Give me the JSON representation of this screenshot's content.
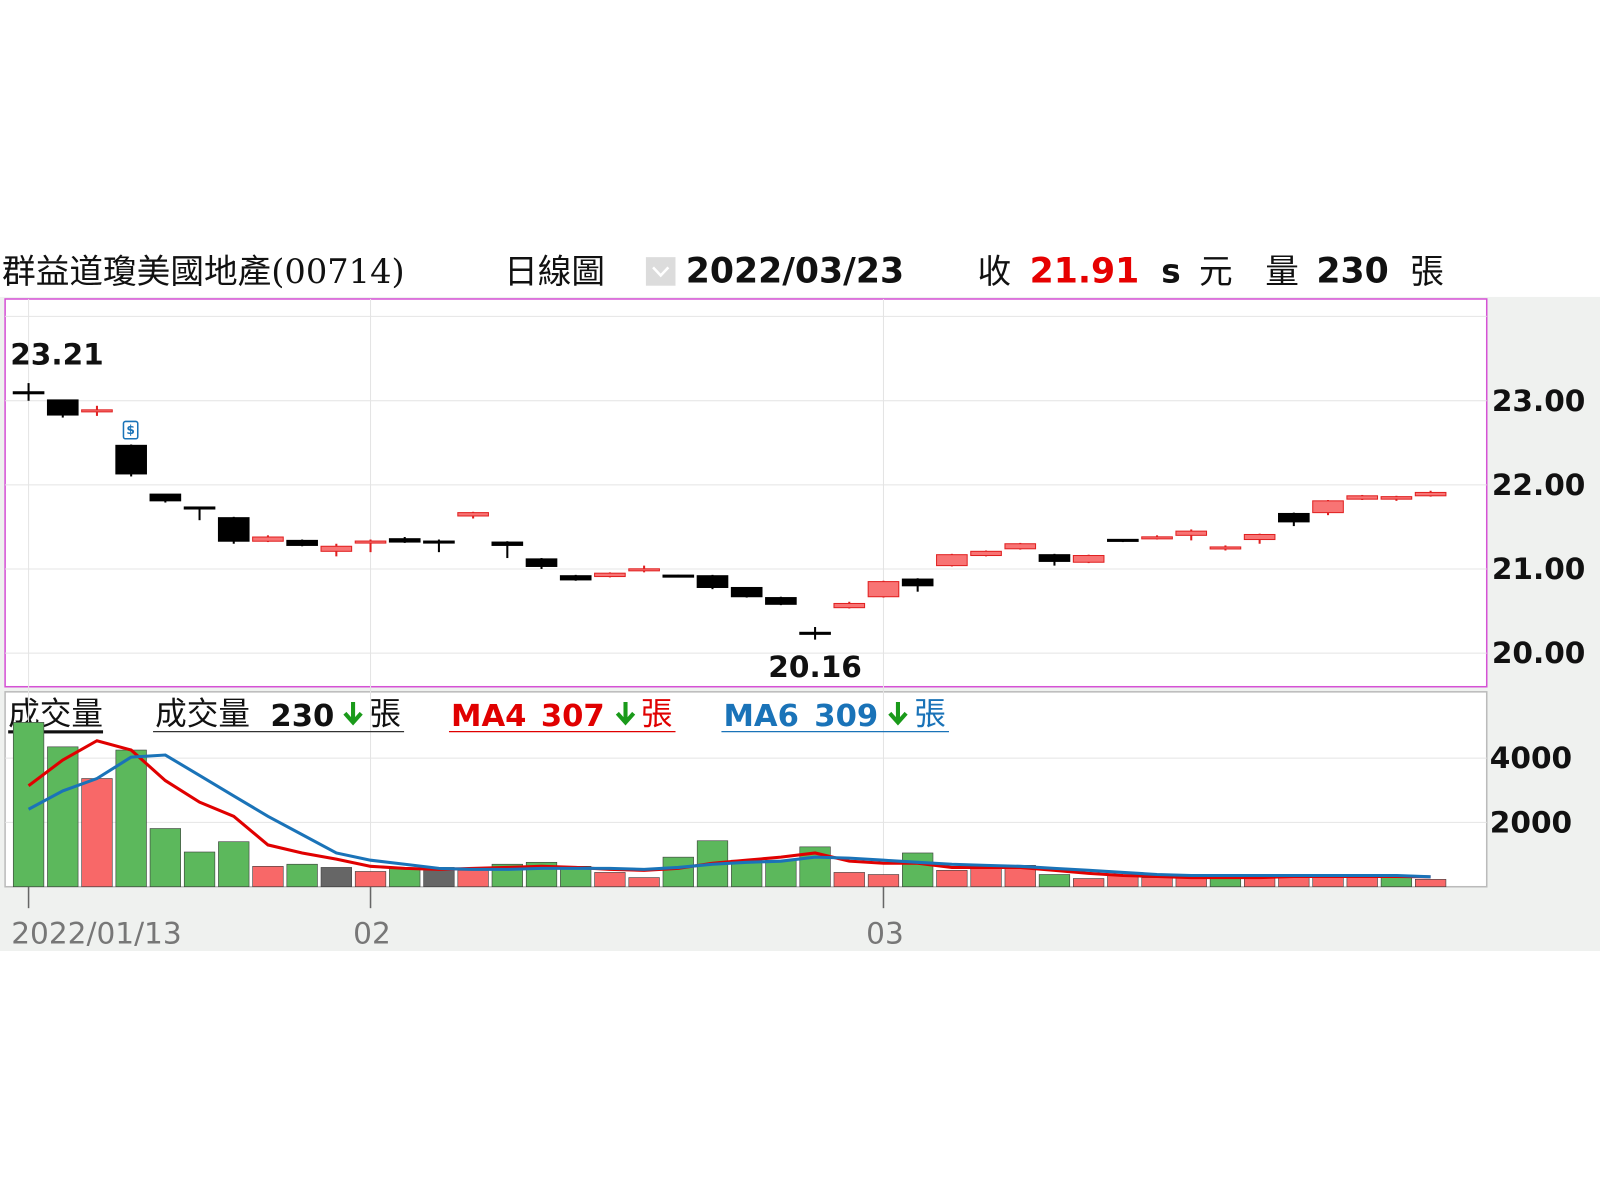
{
  "chart_data": {
    "type": "candlestick",
    "title": "群益道瓊美國地產(00714)",
    "period": "日線圖",
    "date": "2022/03/23",
    "close_label": "收",
    "close_flag": "s",
    "currency": "元",
    "volume_label": "量",
    "unit": "張",
    "dividend_marker": "$",
    "categories": [
      "2022/01/13",
      null,
      null,
      null,
      null,
      null,
      null,
      null,
      null,
      null,
      "02",
      null,
      null,
      null,
      null,
      null,
      null,
      null,
      null,
      null,
      null,
      null,
      null,
      null,
      null,
      "03",
      null,
      null,
      null,
      null,
      null,
      null,
      null,
      null,
      null,
      null,
      null,
      null,
      null,
      null,
      null,
      null
    ],
    "open": [
      23.1,
      23.01,
      22.87,
      22.47,
      21.89,
      21.73,
      21.61,
      21.33,
      21.34,
      21.21,
      21.31,
      21.36,
      21.33,
      21.63,
      21.32,
      21.12,
      20.92,
      20.91,
      20.98,
      20.92,
      20.92,
      20.78,
      20.66,
      20.24,
      20.54,
      20.67,
      20.88,
      21.04,
      21.16,
      21.24,
      21.17,
      21.08,
      21.35,
      21.36,
      21.4,
      21.24,
      21.35,
      21.66,
      21.67,
      21.83,
      21.83,
      21.87
    ],
    "high": [
      23.21,
      23.01,
      22.94,
      22.48,
      21.89,
      21.74,
      21.62,
      21.4,
      21.35,
      21.3,
      21.35,
      21.38,
      21.35,
      21.68,
      21.33,
      21.13,
      20.93,
      20.96,
      21.04,
      20.93,
      20.93,
      20.78,
      20.67,
      20.31,
      20.61,
      20.86,
      20.89,
      21.18,
      21.22,
      21.31,
      21.18,
      21.17,
      21.35,
      21.4,
      21.47,
      21.28,
      21.42,
      21.67,
      21.82,
      21.88,
      21.87,
      21.93
    ],
    "low": [
      23.0,
      22.8,
      22.82,
      22.1,
      21.79,
      21.58,
      21.3,
      21.32,
      21.27,
      21.15,
      21.2,
      21.31,
      21.2,
      21.6,
      21.13,
      21.0,
      20.86,
      20.9,
      20.96,
      20.9,
      20.76,
      20.66,
      20.57,
      20.16,
      20.53,
      20.66,
      20.73,
      21.03,
      21.15,
      21.23,
      21.04,
      21.07,
      21.32,
      21.35,
      21.34,
      21.22,
      21.3,
      21.51,
      21.64,
      21.82,
      21.81,
      21.86
    ],
    "close": [
      23.09,
      22.83,
      22.89,
      22.13,
      21.81,
      21.72,
      21.33,
      21.38,
      21.28,
      21.27,
      21.33,
      21.32,
      21.31,
      21.67,
      21.28,
      21.03,
      20.87,
      20.95,
      21.0,
      20.91,
      20.78,
      20.67,
      20.58,
      20.23,
      20.59,
      20.85,
      20.8,
      21.17,
      21.21,
      21.3,
      21.09,
      21.16,
      21.33,
      21.38,
      21.45,
      21.26,
      21.41,
      21.56,
      21.81,
      21.87,
      21.86,
      21.91
    ],
    "color_up": "#f87474",
    "color_up_edge": "#e02020",
    "color_down": "#000000",
    "ylim": [
      19.6,
      24.21
    ],
    "yticks": [
      {
        "value": 20,
        "label": "20.00"
      },
      {
        "value": 21,
        "label": "21.00"
      },
      {
        "value": 22,
        "label": "22.00"
      },
      {
        "value": 23,
        "label": "23.00"
      }
    ],
    "grid": true,
    "volume": {
      "type": "bar",
      "label": "成交量",
      "values": [
        5110,
        4350,
        3365,
        4250,
        1810,
        1080,
        1400,
        635,
        700,
        600,
        475,
        570,
        600,
        510,
        700,
        760,
        635,
        445,
        285,
        920,
        1430,
        825,
        825,
        1240,
        445,
        380,
        1050,
        510,
        600,
        665,
        380,
        255,
        350,
        285,
        285,
        285,
        285,
        320,
        285,
        380,
        285,
        230
      ],
      "colors": [
        "#5cb85c",
        "#5cb85c",
        "#f86868",
        "#5cb85c",
        "#5cb85c",
        "#5cb85c",
        "#5cb85c",
        "#f86868",
        "#5cb85c",
        "#666666",
        "#f86868",
        "#5cb85c",
        "#666666",
        "#f86868",
        "#5cb85c",
        "#5cb85c",
        "#5cb85c",
        "#f86868",
        "#f86868",
        "#5cb85c",
        "#5cb85c",
        "#5cb85c",
        "#5cb85c",
        "#5cb85c",
        "#f86868",
        "#f86868",
        "#5cb85c",
        "#f86868",
        "#f86868",
        "#f86868",
        "#5cb85c",
        "#f86868",
        "#f86868",
        "#f86868",
        "#f86868",
        "#5cb85c",
        "#f86868",
        "#f86868",
        "#f86868",
        "#f86868",
        "#5cb85c",
        "#f86868"
      ],
      "ylim": [
        0,
        6060
      ],
      "yticks": [
        2000,
        4000
      ],
      "series": [
        {
          "name": "MA4",
          "color": "#e00000",
          "values": [
            3140,
            3940,
            4540,
            4250,
            3300,
            2630,
            2190,
            1300,
            1050,
            860,
            635,
            570,
            540,
            570,
            600,
            635,
            600,
            540,
            510,
            570,
            730,
            825,
            920,
            1050,
            795,
            730,
            730,
            600,
            600,
            600,
            510,
            415,
            350,
            320,
            285,
            285,
            285,
            320,
            320,
            320,
            320,
            307
          ]
        },
        {
          "name": "MA6",
          "color": "#1a73b8",
          "values": [
            2410,
            2980,
            3365,
            4030,
            4095,
            3460,
            2825,
            2190,
            1620,
            1050,
            825,
            700,
            570,
            540,
            540,
            570,
            570,
            570,
            540,
            600,
            700,
            760,
            795,
            920,
            890,
            825,
            760,
            700,
            665,
            635,
            570,
            510,
            445,
            380,
            350,
            350,
            350,
            350,
            350,
            350,
            350,
            309
          ]
        }
      ]
    }
  }
}
